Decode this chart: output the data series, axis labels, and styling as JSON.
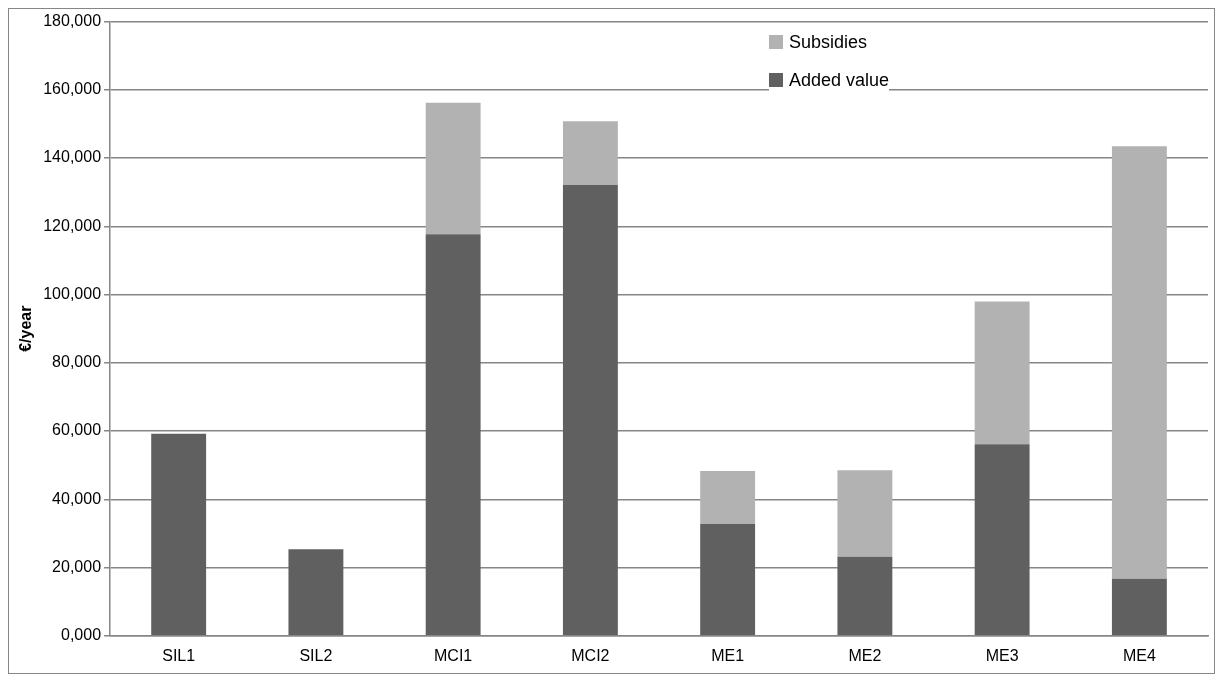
{
  "chart_data": {
    "type": "bar",
    "ylabel": "€/year",
    "categories": [
      "SIL1",
      "SIL2",
      "MCI1",
      "MCI2",
      "ME1",
      "ME2",
      "ME3",
      "ME4"
    ],
    "series": [
      {
        "name": "Added value",
        "color": "#606060",
        "values": [
          59200,
          25400,
          117700,
          132100,
          32800,
          23200,
          56100,
          16700
        ]
      },
      {
        "name": "Subsidies",
        "color": "#b2b2b2",
        "values": [
          0,
          0,
          38500,
          18700,
          15500,
          25300,
          41900,
          126800
        ]
      }
    ],
    "stacked": true,
    "ylim": [
      0,
      180000
    ],
    "yticks": [
      {
        "value": 0,
        "label": "0,000"
      },
      {
        "value": 20000,
        "label": "20,000"
      },
      {
        "value": 40000,
        "label": "40,000"
      },
      {
        "value": 60000,
        "label": "60,000"
      },
      {
        "value": 80000,
        "label": "80,000"
      },
      {
        "value": 100000,
        "label": "100,000"
      },
      {
        "value": 120000,
        "label": "120,000"
      },
      {
        "value": 140000,
        "label": "140,000"
      },
      {
        "value": 160000,
        "label": "160,000"
      },
      {
        "value": 180000,
        "label": "180,000"
      }
    ],
    "grid": "y",
    "legend": "top"
  }
}
